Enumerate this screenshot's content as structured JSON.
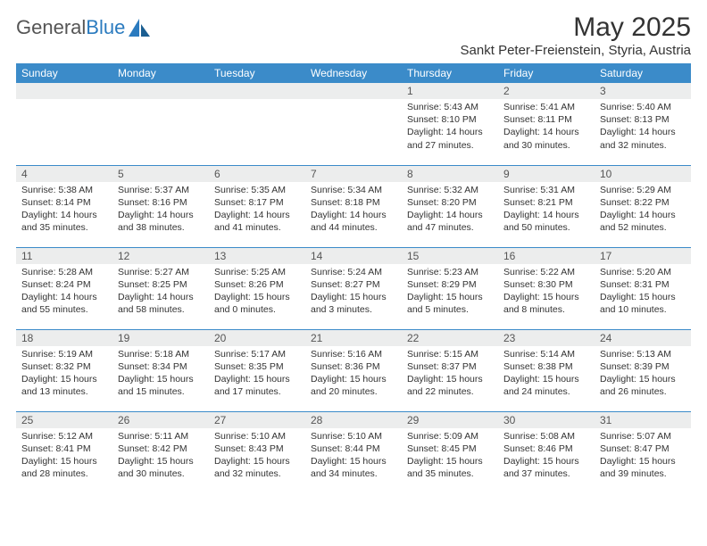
{
  "header": {
    "logo_part1": "General",
    "logo_part2": "Blue",
    "month_title": "May 2025",
    "location": "Sankt Peter-Freienstein, Styria, Austria"
  },
  "colors": {
    "header_bg": "#3b8bc9",
    "header_text": "#ffffff",
    "daynum_bg": "#eceded",
    "cell_border": "#3b8bc9",
    "logo_blue": "#2b7bbf",
    "body_bg": "#ffffff"
  },
  "daynames": [
    "Sunday",
    "Monday",
    "Tuesday",
    "Wednesday",
    "Thursday",
    "Friday",
    "Saturday"
  ],
  "weeks": [
    [
      {
        "num": "",
        "sunrise": "",
        "sunset": "",
        "daylight": ""
      },
      {
        "num": "",
        "sunrise": "",
        "sunset": "",
        "daylight": ""
      },
      {
        "num": "",
        "sunrise": "",
        "sunset": "",
        "daylight": ""
      },
      {
        "num": "",
        "sunrise": "",
        "sunset": "",
        "daylight": ""
      },
      {
        "num": "1",
        "sunrise": "Sunrise: 5:43 AM",
        "sunset": "Sunset: 8:10 PM",
        "daylight": "Daylight: 14 hours and 27 minutes."
      },
      {
        "num": "2",
        "sunrise": "Sunrise: 5:41 AM",
        "sunset": "Sunset: 8:11 PM",
        "daylight": "Daylight: 14 hours and 30 minutes."
      },
      {
        "num": "3",
        "sunrise": "Sunrise: 5:40 AM",
        "sunset": "Sunset: 8:13 PM",
        "daylight": "Daylight: 14 hours and 32 minutes."
      }
    ],
    [
      {
        "num": "4",
        "sunrise": "Sunrise: 5:38 AM",
        "sunset": "Sunset: 8:14 PM",
        "daylight": "Daylight: 14 hours and 35 minutes."
      },
      {
        "num": "5",
        "sunrise": "Sunrise: 5:37 AM",
        "sunset": "Sunset: 8:16 PM",
        "daylight": "Daylight: 14 hours and 38 minutes."
      },
      {
        "num": "6",
        "sunrise": "Sunrise: 5:35 AM",
        "sunset": "Sunset: 8:17 PM",
        "daylight": "Daylight: 14 hours and 41 minutes."
      },
      {
        "num": "7",
        "sunrise": "Sunrise: 5:34 AM",
        "sunset": "Sunset: 8:18 PM",
        "daylight": "Daylight: 14 hours and 44 minutes."
      },
      {
        "num": "8",
        "sunrise": "Sunrise: 5:32 AM",
        "sunset": "Sunset: 8:20 PM",
        "daylight": "Daylight: 14 hours and 47 minutes."
      },
      {
        "num": "9",
        "sunrise": "Sunrise: 5:31 AM",
        "sunset": "Sunset: 8:21 PM",
        "daylight": "Daylight: 14 hours and 50 minutes."
      },
      {
        "num": "10",
        "sunrise": "Sunrise: 5:29 AM",
        "sunset": "Sunset: 8:22 PM",
        "daylight": "Daylight: 14 hours and 52 minutes."
      }
    ],
    [
      {
        "num": "11",
        "sunrise": "Sunrise: 5:28 AM",
        "sunset": "Sunset: 8:24 PM",
        "daylight": "Daylight: 14 hours and 55 minutes."
      },
      {
        "num": "12",
        "sunrise": "Sunrise: 5:27 AM",
        "sunset": "Sunset: 8:25 PM",
        "daylight": "Daylight: 14 hours and 58 minutes."
      },
      {
        "num": "13",
        "sunrise": "Sunrise: 5:25 AM",
        "sunset": "Sunset: 8:26 PM",
        "daylight": "Daylight: 15 hours and 0 minutes."
      },
      {
        "num": "14",
        "sunrise": "Sunrise: 5:24 AM",
        "sunset": "Sunset: 8:27 PM",
        "daylight": "Daylight: 15 hours and 3 minutes."
      },
      {
        "num": "15",
        "sunrise": "Sunrise: 5:23 AM",
        "sunset": "Sunset: 8:29 PM",
        "daylight": "Daylight: 15 hours and 5 minutes."
      },
      {
        "num": "16",
        "sunrise": "Sunrise: 5:22 AM",
        "sunset": "Sunset: 8:30 PM",
        "daylight": "Daylight: 15 hours and 8 minutes."
      },
      {
        "num": "17",
        "sunrise": "Sunrise: 5:20 AM",
        "sunset": "Sunset: 8:31 PM",
        "daylight": "Daylight: 15 hours and 10 minutes."
      }
    ],
    [
      {
        "num": "18",
        "sunrise": "Sunrise: 5:19 AM",
        "sunset": "Sunset: 8:32 PM",
        "daylight": "Daylight: 15 hours and 13 minutes."
      },
      {
        "num": "19",
        "sunrise": "Sunrise: 5:18 AM",
        "sunset": "Sunset: 8:34 PM",
        "daylight": "Daylight: 15 hours and 15 minutes."
      },
      {
        "num": "20",
        "sunrise": "Sunrise: 5:17 AM",
        "sunset": "Sunset: 8:35 PM",
        "daylight": "Daylight: 15 hours and 17 minutes."
      },
      {
        "num": "21",
        "sunrise": "Sunrise: 5:16 AM",
        "sunset": "Sunset: 8:36 PM",
        "daylight": "Daylight: 15 hours and 20 minutes."
      },
      {
        "num": "22",
        "sunrise": "Sunrise: 5:15 AM",
        "sunset": "Sunset: 8:37 PM",
        "daylight": "Daylight: 15 hours and 22 minutes."
      },
      {
        "num": "23",
        "sunrise": "Sunrise: 5:14 AM",
        "sunset": "Sunset: 8:38 PM",
        "daylight": "Daylight: 15 hours and 24 minutes."
      },
      {
        "num": "24",
        "sunrise": "Sunrise: 5:13 AM",
        "sunset": "Sunset: 8:39 PM",
        "daylight": "Daylight: 15 hours and 26 minutes."
      }
    ],
    [
      {
        "num": "25",
        "sunrise": "Sunrise: 5:12 AM",
        "sunset": "Sunset: 8:41 PM",
        "daylight": "Daylight: 15 hours and 28 minutes."
      },
      {
        "num": "26",
        "sunrise": "Sunrise: 5:11 AM",
        "sunset": "Sunset: 8:42 PM",
        "daylight": "Daylight: 15 hours and 30 minutes."
      },
      {
        "num": "27",
        "sunrise": "Sunrise: 5:10 AM",
        "sunset": "Sunset: 8:43 PM",
        "daylight": "Daylight: 15 hours and 32 minutes."
      },
      {
        "num": "28",
        "sunrise": "Sunrise: 5:10 AM",
        "sunset": "Sunset: 8:44 PM",
        "daylight": "Daylight: 15 hours and 34 minutes."
      },
      {
        "num": "29",
        "sunrise": "Sunrise: 5:09 AM",
        "sunset": "Sunset: 8:45 PM",
        "daylight": "Daylight: 15 hours and 35 minutes."
      },
      {
        "num": "30",
        "sunrise": "Sunrise: 5:08 AM",
        "sunset": "Sunset: 8:46 PM",
        "daylight": "Daylight: 15 hours and 37 minutes."
      },
      {
        "num": "31",
        "sunrise": "Sunrise: 5:07 AM",
        "sunset": "Sunset: 8:47 PM",
        "daylight": "Daylight: 15 hours and 39 minutes."
      }
    ]
  ]
}
